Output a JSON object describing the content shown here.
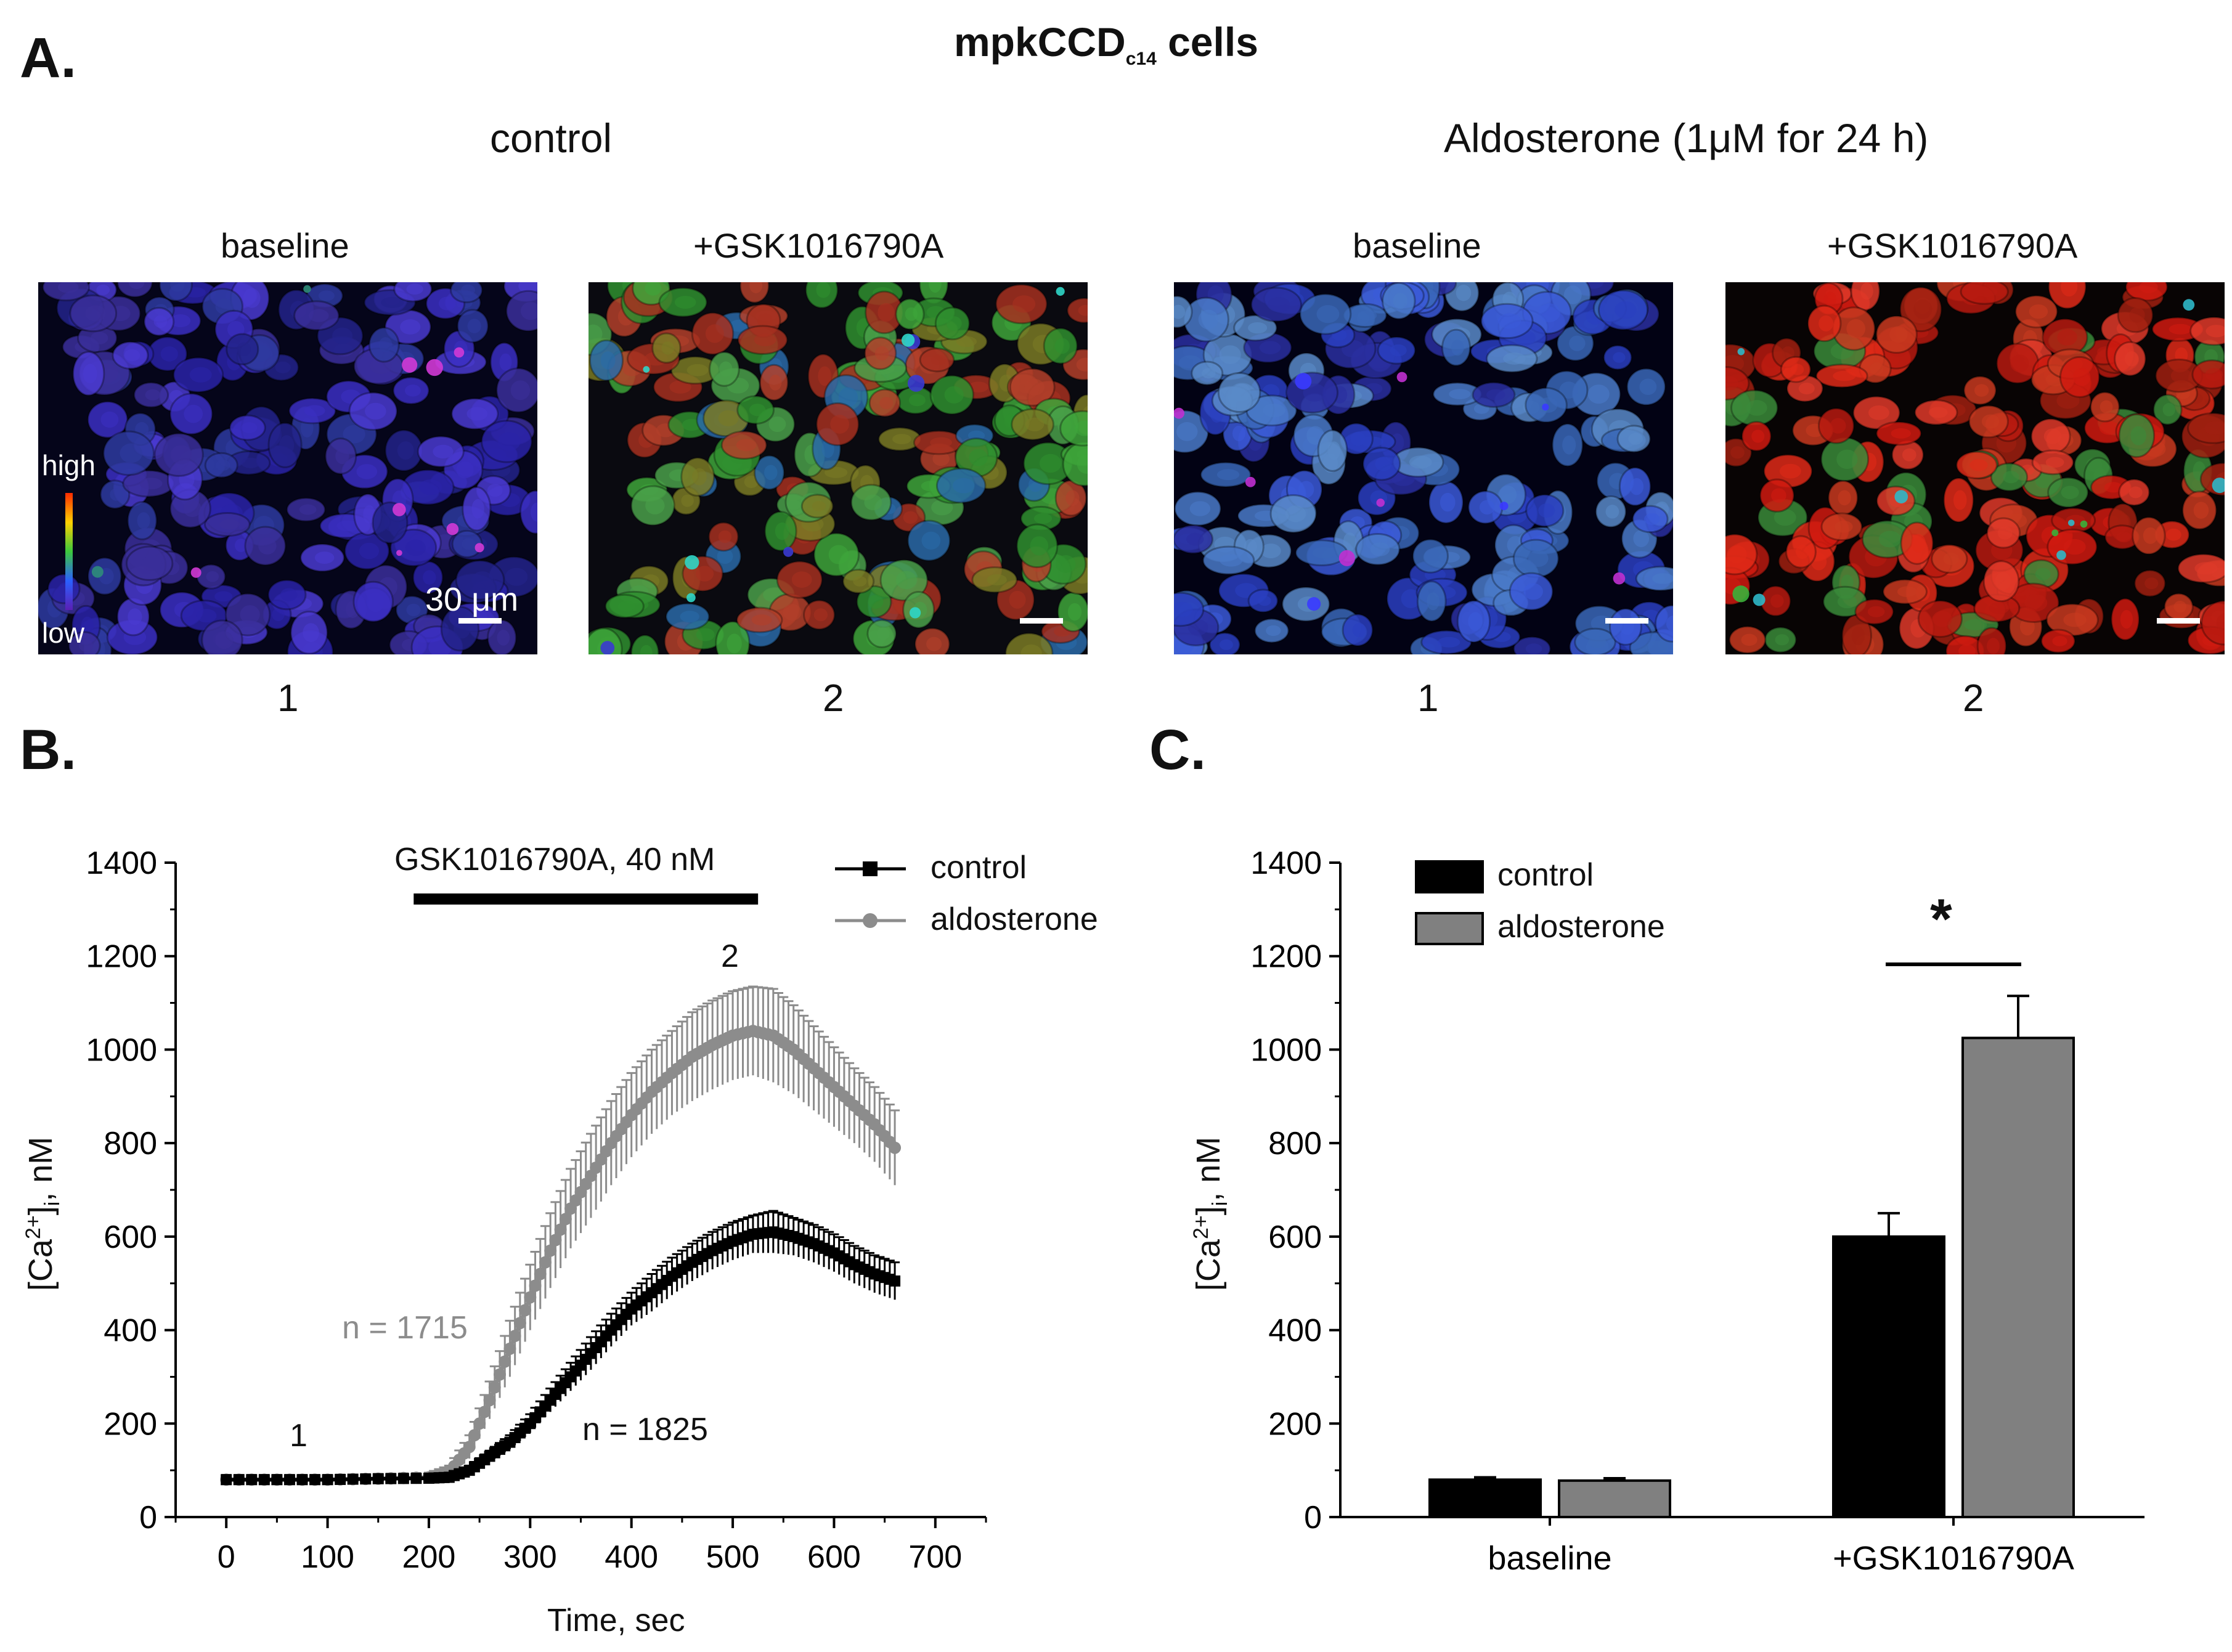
{
  "panelA": {
    "letter": "A.",
    "title_main": "mpkCCD",
    "title_sub": "c14",
    "title_tail": " cells",
    "conditions": [
      "control",
      "Aldosterone (1μM for 24 h)"
    ],
    "images": [
      {
        "label": "baseline",
        "number": "1",
        "tone": "blue"
      },
      {
        "label": "+GSK1016790A",
        "number": "2",
        "tone": "green"
      },
      {
        "label": "baseline",
        "number": "1",
        "tone": "blue2"
      },
      {
        "label": "+GSK1016790A",
        "number": "2",
        "tone": "red"
      }
    ],
    "colorbar": {
      "high": "high",
      "low": "low"
    },
    "scalebar": "30 μm"
  },
  "panelB": {
    "letter": "B.",
    "ylabel_main": "[Ca",
    "ylabel_sup": "2+",
    "ylabel_tail": "]",
    "ylabel_sub": "i",
    "ylabel_unit": ", nM",
    "xlabel": "Time, sec",
    "bar_label": "GSK1016790A, 40 nM",
    "legend": [
      "control",
      "aldosterone"
    ],
    "n_aldo": "n = 1715",
    "n_ctrl": "n = 1825",
    "mark1": "1",
    "mark2": "2"
  },
  "panelC": {
    "letter": "C.",
    "ylabel_main": "[Ca",
    "ylabel_sup": "2+",
    "ylabel_tail": "]",
    "ylabel_sub": "i",
    "ylabel_unit": ", nM",
    "legend": [
      "control",
      "aldosterone"
    ],
    "star": "*"
  },
  "colors": {
    "control": "#000000",
    "aldosterone": "#8c8c8c",
    "aldo_bar": "#808080"
  },
  "chart_data": [
    {
      "type": "line",
      "title": "",
      "xlabel": "Time, sec",
      "ylabel": "[Ca2+]i, nM",
      "xlim": [
        -50,
        750
      ],
      "ylim": [
        0,
        1400
      ],
      "xticks": [
        0,
        100,
        200,
        300,
        400,
        500,
        600,
        700
      ],
      "yticks": [
        0,
        200,
        400,
        600,
        800,
        1000,
        1200,
        1400
      ],
      "stimulus": {
        "label": "GSK1016790A, 40 nM",
        "start": 185,
        "end": 525
      },
      "series": [
        {
          "name": "control",
          "x": [
            0,
            50,
            100,
            150,
            200,
            220,
            240,
            260,
            280,
            300,
            320,
            340,
            360,
            380,
            400,
            420,
            440,
            460,
            480,
            500,
            520,
            540,
            560,
            580,
            600,
            620,
            640,
            660
          ],
          "y": [
            80,
            80,
            80,
            82,
            83,
            85,
            100,
            130,
            160,
            200,
            250,
            300,
            350,
            400,
            445,
            480,
            515,
            545,
            570,
            590,
            605,
            610,
            600,
            585,
            565,
            540,
            520,
            505
          ],
          "err": [
            10,
            10,
            10,
            10,
            10,
            10,
            10,
            12,
            15,
            20,
            25,
            30,
            35,
            35,
            35,
            40,
            40,
            40,
            40,
            40,
            40,
            45,
            40,
            40,
            40,
            40,
            40,
            40
          ]
        },
        {
          "name": "aldosterone",
          "x": [
            0,
            50,
            100,
            150,
            200,
            220,
            240,
            260,
            280,
            300,
            320,
            340,
            360,
            380,
            400,
            420,
            440,
            460,
            480,
            500,
            520,
            540,
            560,
            580,
            600,
            620,
            640,
            660
          ],
          "y": [
            80,
            80,
            80,
            82,
            85,
            95,
            150,
            250,
            360,
            470,
            570,
            660,
            730,
            800,
            860,
            910,
            950,
            985,
            1010,
            1030,
            1040,
            1030,
            1000,
            960,
            920,
            880,
            840,
            790
          ],
          "err": [
            10,
            10,
            10,
            10,
            10,
            15,
            25,
            40,
            60,
            70,
            80,
            85,
            90,
            90,
            90,
            90,
            90,
            95,
            95,
            95,
            95,
            100,
            95,
            90,
            85,
            80,
            80,
            80
          ]
        }
      ],
      "annotations": [
        "1",
        "2",
        "n = 1715",
        "n = 1825"
      ]
    },
    {
      "type": "bar",
      "title": "",
      "ylabel": "[Ca2+]i, nM",
      "ylim": [
        0,
        1400
      ],
      "yticks": [
        0,
        200,
        400,
        600,
        800,
        1000,
        1200,
        1400
      ],
      "categories": [
        "baseline",
        "+GSK1016790A"
      ],
      "series": [
        {
          "name": "control",
          "values": [
            80,
            600
          ],
          "err": [
            5,
            50
          ]
        },
        {
          "name": "aldosterone",
          "values": [
            78,
            1025
          ],
          "err": [
            5,
            90
          ]
        }
      ],
      "annotations": [
        "*"
      ]
    }
  ]
}
